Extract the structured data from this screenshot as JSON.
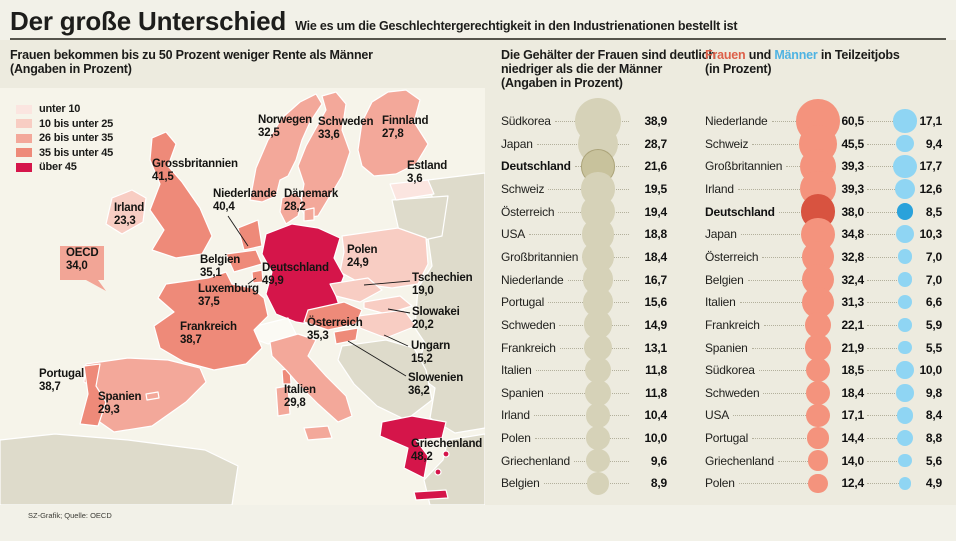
{
  "header": {
    "title": "Der große Unterschied",
    "subtitle": "Wie es um die Geschlechtergerechtigkeit in den Industrienationen bestellt ist"
  },
  "source_note": "SZ-Grafik; Quelle: OECD",
  "colors": {
    "bin_colors": [
      "#fbe5e0",
      "#f8cdc3",
      "#f3a89a",
      "#ee8a79",
      "#d5154a"
    ],
    "nodata_land": "#dedbcb",
    "sea": "#f6f4ea",
    "wage_bubble": "#d6d2b8",
    "wage_bubble_highlight": "#c8c29c",
    "frauen_bubble": "#f4937d",
    "frauen_bubble_highlight": "#d85340",
    "maenner_bubble": "#8fd5f3",
    "maenner_bubble_highlight": "#2aa2db",
    "frauen_text": "#dd5f48",
    "maenner_text": "#4fb3e2"
  },
  "pension_map": {
    "heading": [
      "Frauen bekommen bis zu 50 Prozent weniger Rente als Männer",
      "(Angaben in Prozent)"
    ],
    "legend": [
      {
        "label": "unter 10",
        "color": "#fbe5e0"
      },
      {
        "label": "10 bis unter 25",
        "color": "#f8cdc3"
      },
      {
        "label": "26 bis unter 35",
        "color": "#f3a89a"
      },
      {
        "label": "35 bis unter 45",
        "color": "#ee8a79"
      },
      {
        "label": "über 45",
        "color": "#d5154a"
      }
    ],
    "oecd_callout": {
      "label": "OECD",
      "value": "34,0"
    },
    "labels": [
      {
        "name": "Grossbritannien",
        "value": "41,5"
      },
      {
        "name": "Irland",
        "value": "23,3"
      },
      {
        "name": "Norwegen",
        "value": "32,5"
      },
      {
        "name": "Schweden",
        "value": "33,6"
      },
      {
        "name": "Finnland",
        "value": "27,8"
      },
      {
        "name": "Estland",
        "value": "3,6"
      },
      {
        "name": "Niederlande",
        "value": "40,4"
      },
      {
        "name": "Dänemark",
        "value": "28,2"
      },
      {
        "name": "Belgien",
        "value": "35,1"
      },
      {
        "name": "Luxemburg",
        "value": "37,5"
      },
      {
        "name": "Deutschland",
        "value": "49,9"
      },
      {
        "name": "Polen",
        "value": "24,9"
      },
      {
        "name": "Frankreich",
        "value": "38,7"
      },
      {
        "name": "Österreich",
        "value": "35,3"
      },
      {
        "name": "Tschechien",
        "value": "19,0"
      },
      {
        "name": "Slowakei",
        "value": "20,2"
      },
      {
        "name": "Ungarn",
        "value": "15,2"
      },
      {
        "name": "Slowenien",
        "value": "36,2"
      },
      {
        "name": "Italien",
        "value": "29,8"
      },
      {
        "name": "Spanien",
        "value": "29,3"
      },
      {
        "name": "Portugal",
        "value": "38,7"
      },
      {
        "name": "Griechenland",
        "value": "48,2"
      }
    ]
  },
  "wage_gap": {
    "heading": [
      "Die Gehälter der Frauen sind deutlich",
      "niedriger als die der Männer",
      "(Angaben in Prozent)"
    ],
    "rows": [
      {
        "country": "Südkorea",
        "value": 38.9,
        "display": "38,9",
        "bold": false
      },
      {
        "country": "Japan",
        "value": 28.7,
        "display": "28,7",
        "bold": false
      },
      {
        "country": "Deutschland",
        "value": 21.6,
        "display": "21,6",
        "bold": true
      },
      {
        "country": "Schweiz",
        "value": 19.5,
        "display": "19,5",
        "bold": false
      },
      {
        "country": "Österreich",
        "value": 19.4,
        "display": "19,4",
        "bold": false
      },
      {
        "country": "USA",
        "value": 18.8,
        "display": "18,8",
        "bold": false
      },
      {
        "country": "Großbritannien",
        "value": 18.4,
        "display": "18,4",
        "bold": false
      },
      {
        "country": "Niederlande",
        "value": 16.7,
        "display": "16,7",
        "bold": false
      },
      {
        "country": "Portugal",
        "value": 15.6,
        "display": "15,6",
        "bold": false
      },
      {
        "country": "Schweden",
        "value": 14.9,
        "display": "14,9",
        "bold": false
      },
      {
        "country": "Frankreich",
        "value": 13.1,
        "display": "13,1",
        "bold": false
      },
      {
        "country": "Italien",
        "value": 11.8,
        "display": "11,8",
        "bold": false
      },
      {
        "country": "Spanien",
        "value": 11.8,
        "display": "11,8",
        "bold": false
      },
      {
        "country": "Irland",
        "value": 10.4,
        "display": "10,4",
        "bold": false
      },
      {
        "country": "Polen",
        "value": 10.0,
        "display": "10,0",
        "bold": false
      },
      {
        "country": "Griechenland",
        "value": 9.6,
        "display": "9,6",
        "bold": false
      },
      {
        "country": "Belgien",
        "value": 8.9,
        "display": "8,9",
        "bold": false
      }
    ]
  },
  "parttime": {
    "heading": {
      "frauen": "Frauen",
      "und": " und ",
      "maenner": "Männer",
      "rest": " in Teilzeitjobs",
      "line2": "(in Prozent)"
    },
    "rows": [
      {
        "country": "Niederlande",
        "frauen": 60.5,
        "frauen_display": "60,5",
        "maenner": 17.1,
        "maenner_display": "17,1",
        "bold": false
      },
      {
        "country": "Schweiz",
        "frauen": 45.5,
        "frauen_display": "45,5",
        "maenner": 9.4,
        "maenner_display": "9,4",
        "bold": false
      },
      {
        "country": "Großbritannien",
        "frauen": 39.3,
        "frauen_display": "39,3",
        "maenner": 17.7,
        "maenner_display": "17,7",
        "bold": false
      },
      {
        "country": "Irland",
        "frauen": 39.3,
        "frauen_display": "39,3",
        "maenner": 12.6,
        "maenner_display": "12,6",
        "bold": false
      },
      {
        "country": "Deutschland",
        "frauen": 38.0,
        "frauen_display": "38,0",
        "maenner": 8.5,
        "maenner_display": "8,5",
        "bold": true
      },
      {
        "country": "Japan",
        "frauen": 34.8,
        "frauen_display": "34,8",
        "maenner": 10.3,
        "maenner_display": "10,3",
        "bold": false
      },
      {
        "country": "Österreich",
        "frauen": 32.8,
        "frauen_display": "32,8",
        "maenner": 7.0,
        "maenner_display": "7,0",
        "bold": false
      },
      {
        "country": "Belgien",
        "frauen": 32.4,
        "frauen_display": "32,4",
        "maenner": 7.0,
        "maenner_display": "7,0",
        "bold": false
      },
      {
        "country": "Italien",
        "frauen": 31.3,
        "frauen_display": "31,3",
        "maenner": 6.6,
        "maenner_display": "6,6",
        "bold": false
      },
      {
        "country": "Frankreich",
        "frauen": 22.1,
        "frauen_display": "22,1",
        "maenner": 5.9,
        "maenner_display": "5,9",
        "bold": false
      },
      {
        "country": "Spanien",
        "frauen": 21.9,
        "frauen_display": "21,9",
        "maenner": 5.5,
        "maenner_display": "5,5",
        "bold": false
      },
      {
        "country": "Südkorea",
        "frauen": 18.5,
        "frauen_display": "18,5",
        "maenner": 10.0,
        "maenner_display": "10,0",
        "bold": false
      },
      {
        "country": "Schweden",
        "frauen": 18.4,
        "frauen_display": "18,4",
        "maenner": 9.8,
        "maenner_display": "9,8",
        "bold": false
      },
      {
        "country": "USA",
        "frauen": 17.1,
        "frauen_display": "17,1",
        "maenner": 8.4,
        "maenner_display": "8,4",
        "bold": false
      },
      {
        "country": "Portugal",
        "frauen": 14.4,
        "frauen_display": "14,4",
        "maenner": 8.8,
        "maenner_display": "8,8",
        "bold": false
      },
      {
        "country": "Griechenland",
        "frauen": 14.0,
        "frauen_display": "14,0",
        "maenner": 5.6,
        "maenner_display": "5,6",
        "bold": false
      },
      {
        "country": "Polen",
        "frauen": 12.4,
        "frauen_display": "12,4",
        "maenner": 4.9,
        "maenner_display": "4,9",
        "bold": false
      }
    ]
  },
  "chart_data": [
    {
      "type": "heatmap",
      "subtype": "choropleth-map-europe",
      "title": "Frauen bekommen bis zu 50 Prozent weniger Rente als Männer",
      "unit": "Prozent",
      "legend_bins": [
        "unter 10",
        "10 bis unter 25",
        "26 bis unter 35",
        "35 bis unter 45",
        "über 45"
      ],
      "data": {
        "Grossbritannien": 41.5,
        "Irland": 23.3,
        "Norwegen": 32.5,
        "Schweden": 33.6,
        "Finnland": 27.8,
        "Estland": 3.6,
        "Niederlande": 40.4,
        "Dänemark": 28.2,
        "Belgien": 35.1,
        "Luxemburg": 37.5,
        "Deutschland": 49.9,
        "Polen": 24.9,
        "Frankreich": 38.7,
        "Österreich": 35.3,
        "Tschechien": 19.0,
        "Slowakei": 20.2,
        "Ungarn": 15.2,
        "Slowenien": 36.2,
        "Italien": 29.8,
        "Spanien": 29.3,
        "Portugal": 38.7,
        "Griechenland": 48.2,
        "OECD": 34.0
      }
    },
    {
      "type": "bar",
      "subtype": "bubble-list",
      "title": "Die Gehälter der Frauen sind deutlich niedriger als die der Männer",
      "unit": "Prozent",
      "categories": [
        "Südkorea",
        "Japan",
        "Deutschland",
        "Schweiz",
        "Österreich",
        "USA",
        "Großbritannien",
        "Niederlande",
        "Portugal",
        "Schweden",
        "Frankreich",
        "Italien",
        "Spanien",
        "Irland",
        "Polen",
        "Griechenland",
        "Belgien"
      ],
      "values": [
        38.9,
        28.7,
        21.6,
        19.5,
        19.4,
        18.8,
        18.4,
        16.7,
        15.6,
        14.9,
        13.1,
        11.8,
        11.8,
        10.4,
        10.0,
        9.6,
        8.9
      ]
    },
    {
      "type": "bar",
      "subtype": "bubble-list",
      "title": "Frauen und Männer in Teilzeitjobs",
      "unit": "Prozent",
      "categories": [
        "Niederlande",
        "Schweiz",
        "Großbritannien",
        "Irland",
        "Deutschland",
        "Japan",
        "Österreich",
        "Belgien",
        "Italien",
        "Frankreich",
        "Spanien",
        "Südkorea",
        "Schweden",
        "USA",
        "Portugal",
        "Griechenland",
        "Polen"
      ],
      "series": [
        {
          "name": "Frauen",
          "color": "#f4937d",
          "values": [
            60.5,
            45.5,
            39.3,
            39.3,
            38.0,
            34.8,
            32.8,
            32.4,
            31.3,
            22.1,
            21.9,
            18.5,
            18.4,
            17.1,
            14.4,
            14.0,
            12.4
          ]
        },
        {
          "name": "Männer",
          "color": "#8fd5f3",
          "values": [
            17.1,
            9.4,
            17.7,
            12.6,
            8.5,
            10.3,
            7.0,
            7.0,
            6.6,
            5.9,
            5.5,
            10.0,
            9.8,
            8.4,
            8.8,
            5.6,
            4.9
          ]
        }
      ]
    }
  ]
}
